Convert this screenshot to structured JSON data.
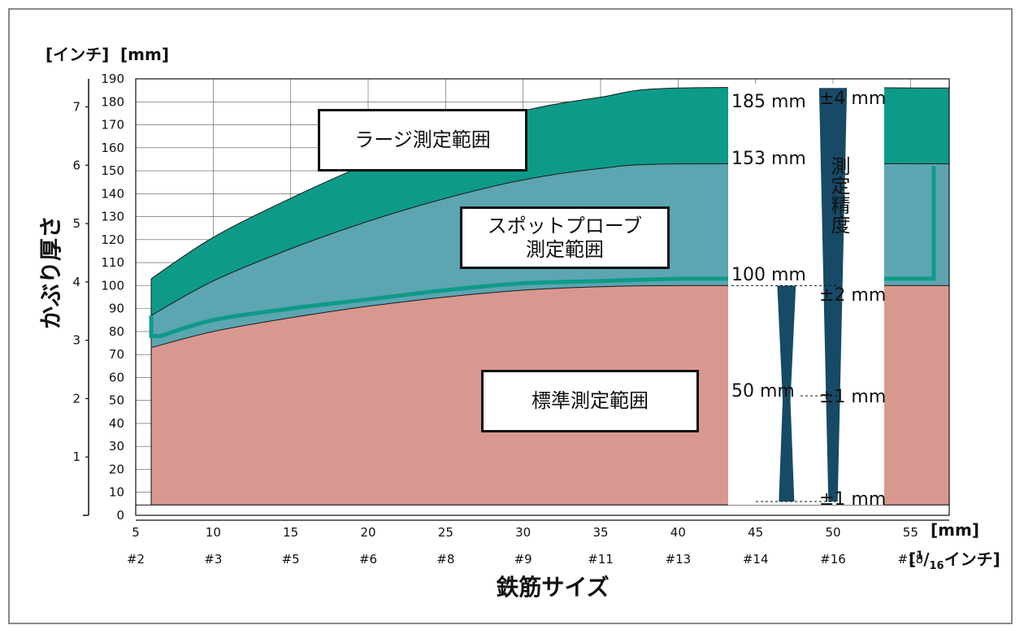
{
  "chart_data": {
    "type": "area",
    "title": "",
    "xlabel": "鉄筋サイズ",
    "ylabel": "かぶり厚さ",
    "y_units": {
      "inch": "[インチ]",
      "mm": "[mm]"
    },
    "x_units": {
      "mm": "[mm]",
      "inch_prefix": "[",
      "inch_num": "1",
      "inch_slash": "/",
      "inch_den": "16",
      "inch_suffix": "インチ]"
    },
    "xlim": [
      5,
      57.5
    ],
    "ylim_mm": [
      0,
      190
    ],
    "y_ticks_mm": [
      "0",
      "10",
      "20",
      "30",
      "40",
      "50",
      "60",
      "70",
      "80",
      "90",
      "100",
      "110",
      "120",
      "130",
      "140",
      "150",
      "160",
      "170",
      "180",
      "190"
    ],
    "y_ticks_inch": [
      "1",
      "2",
      "3",
      "4",
      "5",
      "6",
      "7"
    ],
    "x_ticks_mm": [
      "5",
      "10",
      "15",
      "20",
      "25",
      "30",
      "35",
      "40",
      "45",
      "50",
      "55"
    ],
    "x_ticks_bar": [
      "#2",
      "#3",
      "#5",
      "#6",
      "#8",
      "#9",
      "#11",
      "#13",
      "#14",
      "#16",
      "#18"
    ],
    "series": [
      {
        "name": "ラージ測定範囲",
        "color": "#0e9a88",
        "x": [
          6,
          10,
          15,
          20,
          25,
          30,
          35,
          40,
          57.5
        ],
        "values": [
          103,
          121,
          138,
          153,
          165,
          176,
          182,
          186,
          186
        ]
      },
      {
        "name": "スポットプローブ測定範囲",
        "color": "#5ca5b1",
        "x": [
          6,
          10,
          15,
          20,
          25,
          30,
          35,
          40,
          57.5
        ],
        "values": [
          87,
          102,
          116,
          128,
          138,
          146,
          151,
          153,
          153
        ]
      },
      {
        "name": "標準測定範囲",
        "color": "#d9988f",
        "x": [
          6,
          10,
          15,
          20,
          25,
          30,
          35,
          40,
          57.5
        ],
        "values": [
          73,
          80,
          86,
          91,
          95,
          98,
          99.5,
          100,
          100
        ]
      }
    ],
    "accuracy_panel": {
      "title": "測定精度",
      "range_labels": [
        "185 mm",
        "153 mm",
        "100 mm",
        "50 mm"
      ],
      "tolerance_labels": [
        "±4 mm",
        "±2 mm",
        "±1 mm",
        "±1 mm"
      ]
    }
  },
  "labels": {
    "large": "ラージ測定範囲",
    "spot_line1": "スポットプローブ",
    "spot_line2": "測定範囲",
    "standard": "標準測定範囲"
  }
}
